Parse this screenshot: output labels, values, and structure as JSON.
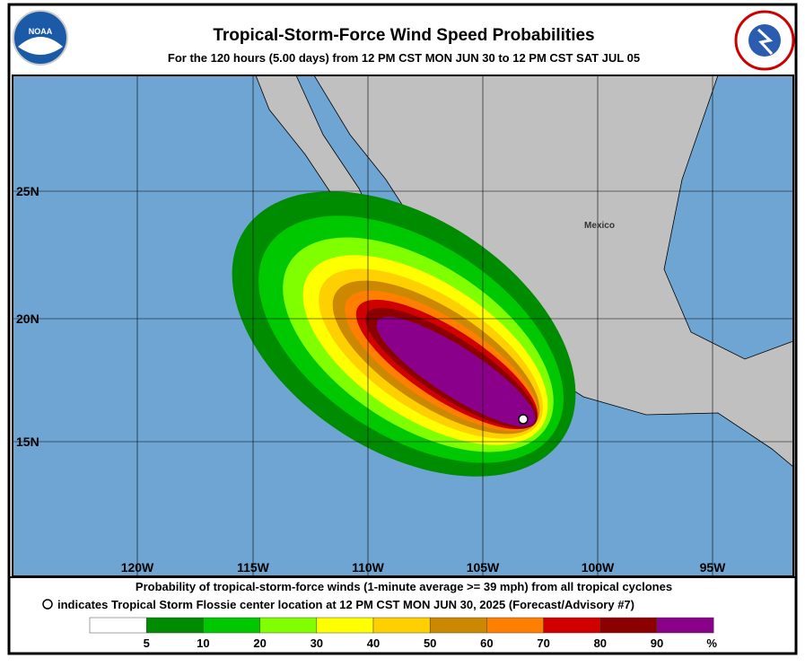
{
  "header": {
    "title": "Tropical-Storm-Force Wind Speed Probabilities",
    "subtitle": "For the 120 hours (5.00 days) from 12 PM CST MON JUN 30 to 12 PM CST SAT JUL 05"
  },
  "map": {
    "longitude_labels": [
      "120W",
      "115W",
      "110W",
      "105W",
      "100W",
      "95W"
    ],
    "latitude_labels": [
      "25N",
      "20N",
      "15N"
    ],
    "country_label": "Mexico"
  },
  "footer": {
    "line1": "Probability of tropical-storm-force winds (1-minute average >= 39 mph) from all tropical cyclones",
    "line2": "indicates Tropical Storm Flossie center location at 12 PM CST MON JUN 30, 2025 (Forecast/Advisory #7)"
  },
  "legend": {
    "labels": [
      "5",
      "10",
      "20",
      "30",
      "40",
      "50",
      "60",
      "70",
      "80",
      "90"
    ],
    "unit": "%"
  }
}
